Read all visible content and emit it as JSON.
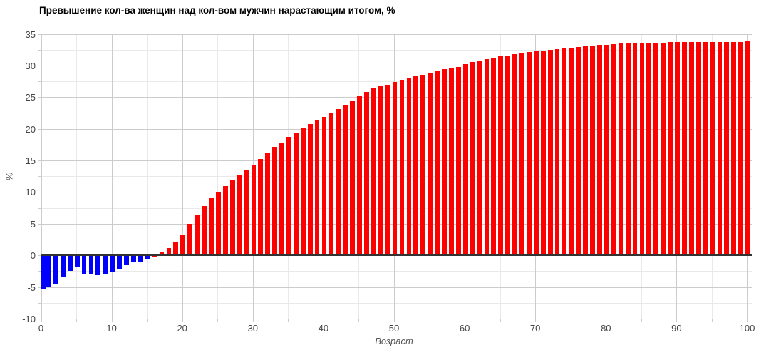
{
  "chart_data": {
    "type": "bar",
    "title": "Превышение кол-ва женщин над кол-вом мужчин нарастающим итогом, %",
    "xlabel": "Возраст",
    "ylabel": "%",
    "xlim": [
      0,
      100
    ],
    "ylim": [
      -10,
      35
    ],
    "x_ticks": [
      0,
      10,
      20,
      30,
      40,
      50,
      60,
      70,
      80,
      90,
      100
    ],
    "y_ticks": [
      -10,
      -5,
      0,
      5,
      10,
      15,
      20,
      25,
      30,
      35
    ],
    "grid": true,
    "legend_position": "none",
    "x_start_age": 0,
    "x_step": 1,
    "values": [
      -5.3,
      -5.1,
      -4.5,
      -3.5,
      -2.4,
      -1.9,
      -3.0,
      -2.9,
      -3.1,
      -2.9,
      -2.6,
      -2.2,
      -1.5,
      -1.1,
      -1.0,
      -0.6,
      -0.2,
      0.5,
      1.1,
      2.0,
      3.3,
      5.0,
      6.4,
      7.8,
      9.0,
      10.0,
      10.9,
      11.8,
      12.6,
      13.4,
      14.2,
      15.2,
      16.2,
      17.1,
      17.8,
      18.7,
      19.3,
      20.2,
      20.8,
      21.3,
      21.9,
      22.4,
      23.1,
      23.8,
      24.5,
      25.2,
      25.8,
      26.4,
      26.7,
      27.0,
      27.4,
      27.7,
      28.0,
      28.3,
      28.5,
      28.8,
      29.1,
      29.4,
      29.6,
      29.8,
      30.2,
      30.5,
      30.8,
      31.0,
      31.2,
      31.4,
      31.6,
      31.8,
      32.0,
      32.1,
      32.3,
      32.4,
      32.5,
      32.6,
      32.7,
      32.8,
      32.9,
      33.0,
      33.1,
      33.2,
      33.3,
      33.4,
      33.45,
      33.5,
      33.55,
      33.6,
      33.6,
      33.6,
      33.6,
      33.65,
      33.7,
      33.7,
      33.7,
      33.7,
      33.7,
      33.7,
      33.7,
      33.65,
      33.7,
      33.7,
      33.8
    ],
    "bar_color_rule": {
      "blue_for_ages_up_to": 15,
      "red_for_ages_from": 16
    },
    "colors": {
      "bar_blue": "#0000ff",
      "bar_red": "#ff0000",
      "baseline": "#333333",
      "axis_line": "#333333",
      "major_gridline": "#cccccc",
      "minor_gridline": "#e9e9e9",
      "tick_label": "#444444",
      "axis_title": "#555555",
      "title": "#000000",
      "background": "#ffffff"
    }
  }
}
